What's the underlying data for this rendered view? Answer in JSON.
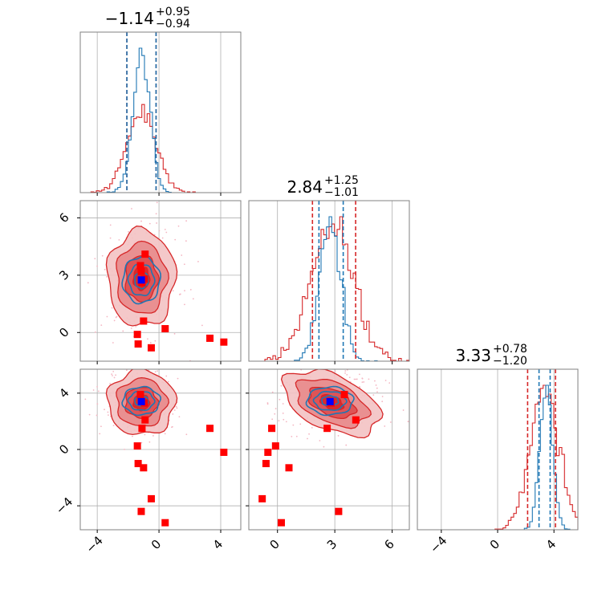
{
  "chart_data": {
    "type": "corner",
    "params": 3,
    "colors": {
      "red": "#d62728",
      "blue": "#1f77b4",
      "red_fill": "#e8888a",
      "marker_red": "#ff0000",
      "marker_blue": "#0000ff"
    },
    "panel_titles": [
      {
        "main": "−1.14",
        "sup": "+0.95",
        "sub": "−0.94"
      },
      {
        "main": "2.84",
        "sup": "+1.25",
        "sub": "−1.01"
      },
      {
        "main": "3.33",
        "sup": "+0.78",
        "sub": "−1.20"
      }
    ],
    "ranges": [
      [
        -5.1,
        5.3
      ],
      [
        -1.5,
        6.9
      ],
      [
        -5.7,
        5.7
      ]
    ],
    "ticks": [
      {
        "values": [
          -4,
          0,
          4
        ],
        "labels": [
          "−4",
          "0",
          "4"
        ]
      },
      {
        "values": [
          0,
          3,
          6
        ],
        "labels": [
          "0",
          "3",
          "6"
        ]
      },
      {
        "values": [
          -4,
          0,
          4
        ],
        "labels": [
          "−4",
          "0",
          "4"
        ]
      }
    ],
    "quantiles": {
      "red": [
        [
          -2.08,
          -0.19
        ],
        [
          1.83,
          4.09
        ],
        [
          2.13,
          4.11
        ]
      ],
      "blue": [
        [
          -2.08,
          -0.19
        ],
        [
          2.17,
          3.44
        ],
        [
          2.94,
          3.73
        ]
      ]
    },
    "blue_summary": {
      "mean": [
        -1.14,
        2.75,
        3.45
      ],
      "sd": [
        0.55,
        0.55,
        0.45
      ]
    },
    "red_summary": {
      "mean": [
        -1.14,
        2.84,
        3.33
      ],
      "sd": [
        0.95,
        1.1,
        1.0
      ]
    },
    "truth_point": [
      -1.14,
      2.75,
      3.4
    ],
    "red_markers": [
      [
        -1.4,
        -0.1,
        0.25
      ],
      [
        -1.35,
        -0.6,
        -1.0
      ],
      [
        -0.5,
        -0.8,
        -3.5
      ],
      [
        0.4,
        0.2,
        -5.2
      ],
      [
        3.3,
        -0.3,
        1.5
      ],
      [
        4.2,
        -0.5,
        -0.2
      ],
      [
        -1.0,
        0.6,
        -1.3
      ],
      [
        -1.1,
        2.6,
        1.5
      ],
      [
        -0.9,
        4.1,
        2.1
      ],
      [
        -1.15,
        3.2,
        -4.4
      ],
      [
        -0.95,
        2.8,
        3.3
      ],
      [
        -1.2,
        3.5,
        3.9
      ]
    ],
    "grid": true
  }
}
